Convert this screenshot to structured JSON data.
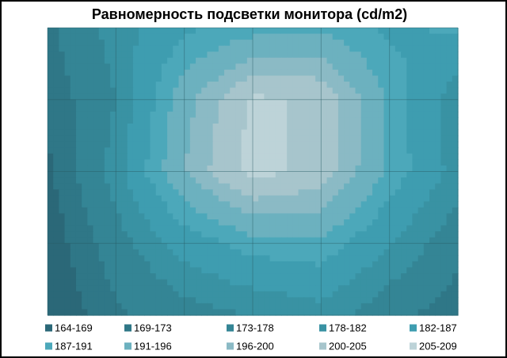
{
  "chart_data": {
    "type": "contour",
    "title": "Равномерность  подсветки монитора (cd/m2)",
    "z": [
      [
        172,
        180,
        186,
        189,
        190,
        186,
        188
      ],
      [
        170,
        178,
        194,
        206,
        204,
        190,
        179
      ],
      [
        168,
        180,
        196,
        207,
        203,
        190,
        180
      ],
      [
        166,
        176,
        184,
        189,
        190,
        182,
        175
      ],
      [
        165,
        172,
        176,
        178,
        180,
        175,
        170
      ]
    ],
    "levels": [
      164,
      169,
      173,
      178,
      182,
      187,
      191,
      196,
      200,
      205,
      209
    ],
    "series": [
      {
        "name": "164-169",
        "color": "#2b6878"
      },
      {
        "name": "169-173",
        "color": "#2f7787"
      },
      {
        "name": "173-178",
        "color": "#348595"
      },
      {
        "name": "178-182",
        "color": "#3992a3"
      },
      {
        "name": "182-187",
        "color": "#3e9db0"
      },
      {
        "name": "187-191",
        "color": "#4ca8ba"
      },
      {
        "name": "191-196",
        "color": "#6cb1bf"
      },
      {
        "name": "196-200",
        "color": "#8bbac5"
      },
      {
        "name": "200-205",
        "color": "#a7c5cc"
      },
      {
        "name": "205-209",
        "color": "#bdd3d8"
      }
    ]
  }
}
